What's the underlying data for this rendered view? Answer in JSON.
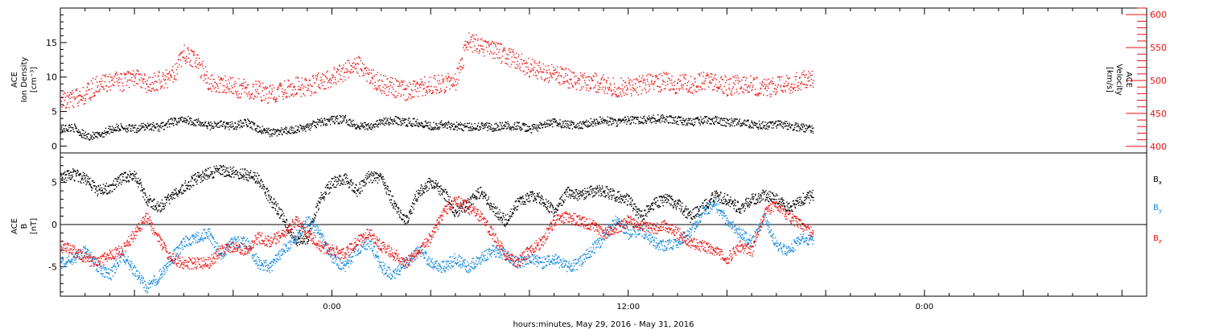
{
  "colors": {
    "black": "#000000",
    "red": "#ee1111",
    "blue": "#1188dd"
  },
  "x_axis": {
    "label": "hours:minutes, May 29, 2016 - May 31, 2016",
    "range_hours": [
      -11,
      33
    ],
    "tick_labels": [
      {
        "hour": 0,
        "text": "0:00"
      },
      {
        "hour": 12,
        "text": "12:00"
      },
      {
        "hour": 24,
        "text": "0:00"
      }
    ],
    "minor_tick_every_hours": 1,
    "major_tick_every_hours": 4
  },
  "chart_data": [
    {
      "type": "scatter",
      "title": "",
      "left_axis": {
        "label_lines": [
          "ACE",
          "Ion Density",
          "[cm⁻³]"
        ],
        "range": [
          -1,
          20
        ],
        "ticks": [
          0,
          5,
          10,
          15
        ]
      },
      "right_axis": {
        "label_lines": [
          "ACE",
          "Velocity",
          "[km/s]"
        ],
        "range": [
          390,
          610
        ],
        "ticks": [
          400,
          450,
          500,
          550,
          600
        ],
        "color": "#ee1111"
      },
      "grid": false,
      "series": [
        {
          "axis": "left",
          "color": "#000000",
          "x": [
            -11,
            -10.5,
            -10,
            -9.5,
            -9,
            -8.5,
            -8,
            -7.5,
            -7,
            -6.5,
            -6,
            -5.5,
            -5,
            -4.5,
            -4,
            -3.5,
            -3,
            -2.5,
            -2,
            -1.5,
            -1,
            -0.5,
            0,
            0.5,
            1,
            1.5,
            2,
            2.5,
            3,
            3.5,
            4,
            4.5,
            5,
            5.5,
            6,
            6.5,
            7,
            7.5,
            8,
            8.5,
            9,
            9.5,
            10,
            10.5,
            11,
            11.5,
            12,
            12.5,
            13,
            13.5,
            14,
            14.5,
            15,
            15.5,
            16,
            16.5,
            17,
            17.5,
            18,
            18.5,
            19,
            19.5
          ],
          "y": [
            2.5,
            2.8,
            1.5,
            1.5,
            2.5,
            2.8,
            2.5,
            3.0,
            2.8,
            3.5,
            4.0,
            3.5,
            3.0,
            3.2,
            3.0,
            3.5,
            2.5,
            2.0,
            2.2,
            2.5,
            2.8,
            3.5,
            3.8,
            4.0,
            3.0,
            3.0,
            3.5,
            3.8,
            3.5,
            3.5,
            3.0,
            3.2,
            3.0,
            2.8,
            3.0,
            2.8,
            3.0,
            3.0,
            2.5,
            3.0,
            3.5,
            3.2,
            3.0,
            3.5,
            3.8,
            3.5,
            3.8,
            3.8,
            4.0,
            4.0,
            3.8,
            3.5,
            3.8,
            3.8,
            3.5,
            3.5,
            3.2,
            3.0,
            3.2,
            3.0,
            2.8,
            2.5
          ]
        },
        {
          "axis": "right",
          "color": "#ee1111",
          "x": [
            -11,
            -10.5,
            -10,
            -9.5,
            -9,
            -8.5,
            -8,
            -7.5,
            -7,
            -6.5,
            -6,
            -5.5,
            -5,
            -4.5,
            -4,
            -3.5,
            -3,
            -2.5,
            -2,
            -1.5,
            -1,
            -0.5,
            0,
            0.5,
            1,
            1.5,
            2,
            2.5,
            3,
            3.5,
            4,
            4.5,
            5,
            5.5,
            6,
            6.5,
            7,
            7.5,
            8,
            8.5,
            9,
            9.5,
            10,
            10.5,
            11,
            11.5,
            12,
            12.5,
            13,
            13.5,
            14,
            14.5,
            15,
            15.5,
            16,
            16.5,
            17,
            17.5,
            18,
            18.5,
            19,
            19.5
          ],
          "y": [
            473,
            472,
            480,
            495,
            500,
            498,
            505,
            495,
            500,
            505,
            540,
            530,
            500,
            495,
            490,
            488,
            485,
            480,
            485,
            492,
            490,
            500,
            505,
            515,
            525,
            505,
            495,
            490,
            485,
            490,
            495,
            495,
            500,
            560,
            555,
            545,
            540,
            530,
            520,
            515,
            510,
            505,
            500,
            498,
            495,
            490,
            490,
            495,
            500,
            498,
            495,
            495,
            500,
            498,
            492,
            494,
            493,
            490,
            492,
            495,
            500,
            505
          ]
        }
      ]
    },
    {
      "type": "scatter",
      "title": "",
      "left_axis": {
        "label_lines": [
          "ACE",
          "B",
          "[nT]"
        ],
        "range": [
          -8.5,
          8.5
        ],
        "ticks": [
          -5,
          0,
          5
        ]
      },
      "zero_line": true,
      "grid": false,
      "legend": [
        {
          "name": "B",
          "sub": "x",
          "color": "#000000"
        },
        {
          "name": "B",
          "sub": "y",
          "color": "#1188dd"
        },
        {
          "name": "B",
          "sub": "z",
          "color": "#ee1111"
        }
      ],
      "legend_position": "right",
      "series": [
        {
          "name": "Bx",
          "color": "#000000",
          "x": [
            -11,
            -10.5,
            -10,
            -9.5,
            -9,
            -8.5,
            -8,
            -7.5,
            -7,
            -6.5,
            -6,
            -5.5,
            -5,
            -4.5,
            -4,
            -3.5,
            -3,
            -2.5,
            -2,
            -1.5,
            -1,
            -0.5,
            0,
            0.5,
            1,
            1.5,
            2,
            2.5,
            3,
            3.5,
            4,
            4.5,
            5,
            5.5,
            6,
            6.5,
            7,
            7.5,
            8,
            8.5,
            9,
            9.5,
            10,
            10.5,
            11,
            11.5,
            12,
            12.5,
            13,
            13.5,
            14,
            14.5,
            15,
            15.5,
            16,
            16.5,
            17,
            17.5,
            18,
            18.5,
            19,
            19.5
          ],
          "y": [
            5.8,
            6.0,
            5.5,
            4.0,
            4.5,
            5.5,
            6.0,
            3.0,
            2.0,
            3.5,
            4.5,
            5.5,
            6.2,
            6.5,
            6.3,
            6.0,
            5.5,
            3.0,
            1.0,
            -2.0,
            -1.5,
            3.0,
            5.0,
            5.5,
            4.0,
            5.8,
            5.5,
            2.5,
            0.5,
            4.0,
            5.0,
            4.0,
            1.5,
            2.5,
            4.0,
            2.0,
            0.5,
            2.5,
            3.5,
            3.0,
            1.5,
            4.0,
            3.5,
            4.0,
            4.0,
            3.5,
            3.0,
            1.0,
            2.5,
            3.0,
            2.5,
            1.0,
            2.0,
            3.5,
            3.0,
            2.0,
            3.0,
            3.5,
            3.0,
            2.0,
            3.0,
            3.5
          ]
        },
        {
          "name": "By",
          "color": "#1188dd",
          "x": [
            -11,
            -10.5,
            -10,
            -9.5,
            -9,
            -8.5,
            -8,
            -7.5,
            -7,
            -6.5,
            -6,
            -5.5,
            -5,
            -4.5,
            -4,
            -3.5,
            -3,
            -2.5,
            -2,
            -1.5,
            -1,
            -0.5,
            0,
            0.5,
            1,
            1.5,
            2,
            2.5,
            3,
            3.5,
            4,
            4.5,
            5,
            5.5,
            6,
            6.5,
            7,
            7.5,
            8,
            8.5,
            9,
            9.5,
            10,
            10.5,
            11,
            11.5,
            12,
            12.5,
            13,
            13.5,
            14,
            14.5,
            15,
            15.5,
            16,
            16.5,
            17,
            17.5,
            18,
            18.5,
            19,
            19.5
          ],
          "y": [
            -4.5,
            -4.0,
            -3.0,
            -5.0,
            -6.0,
            -3.5,
            -5.5,
            -7.5,
            -6.0,
            -4.0,
            -2.0,
            -1.5,
            -1.0,
            -3.5,
            -2.0,
            -2.0,
            -4.5,
            -5.0,
            -3.0,
            -1.5,
            0.5,
            -1.0,
            -4.0,
            -5.0,
            -3.0,
            -2.0,
            -5.0,
            -6.0,
            -4.5,
            -3.0,
            -4.5,
            -5.0,
            -4.0,
            -5.0,
            -4.0,
            -3.0,
            -3.5,
            -4.5,
            -4.0,
            -4.5,
            -4.0,
            -5.0,
            -4.5,
            -3.0,
            -1.5,
            0.5,
            -1.0,
            -0.5,
            -2.0,
            -2.5,
            -2.0,
            -1.0,
            1.5,
            2.5,
            0.5,
            -1.0,
            -2.0,
            1.0,
            -2.5,
            -3.0,
            -1.5,
            -2.0
          ]
        },
        {
          "name": "Bz",
          "color": "#ee1111",
          "x": [
            -11,
            -10.5,
            -10,
            -9.5,
            -9,
            -8.5,
            -8,
            -7.5,
            -7,
            -6.5,
            -6,
            -5.5,
            -5,
            -4.5,
            -4,
            -3.5,
            -3,
            -2.5,
            -2,
            -1.5,
            -1,
            -0.5,
            0,
            0.5,
            1,
            1.5,
            2,
            2.5,
            3,
            3.5,
            4,
            4.5,
            5,
            5.5,
            6,
            6.5,
            7,
            7.5,
            8,
            8.5,
            9,
            9.5,
            10,
            10.5,
            11,
            11.5,
            12,
            12.5,
            13,
            13.5,
            14,
            14.5,
            15,
            15.5,
            16,
            16.5,
            17,
            17.5,
            18,
            18.5,
            19,
            19.5
          ],
          "y": [
            -2.5,
            -3.0,
            -4.0,
            -4.5,
            -3.5,
            -3.0,
            -1.0,
            1.0,
            -2.0,
            -4.0,
            -4.5,
            -4.5,
            -4.5,
            -3.0,
            -2.5,
            -3.0,
            -1.5,
            -2.0,
            -1.0,
            0.5,
            -1.0,
            -2.5,
            -3.0,
            -3.5,
            -2.0,
            -1.0,
            -2.5,
            -3.5,
            -4.5,
            -3.0,
            -1.5,
            1.5,
            3.0,
            2.0,
            1.0,
            -1.0,
            -3.5,
            -4.5,
            -3.0,
            -2.0,
            0.5,
            1.0,
            0.5,
            0.0,
            -1.0,
            -0.5,
            0.5,
            0.0,
            -0.5,
            0.0,
            -1.0,
            -2.0,
            -2.5,
            -3.0,
            -4.0,
            -2.5,
            -3.0,
            1.5,
            2.5,
            1.0,
            0.0,
            -1.0
          ]
        }
      ]
    }
  ]
}
